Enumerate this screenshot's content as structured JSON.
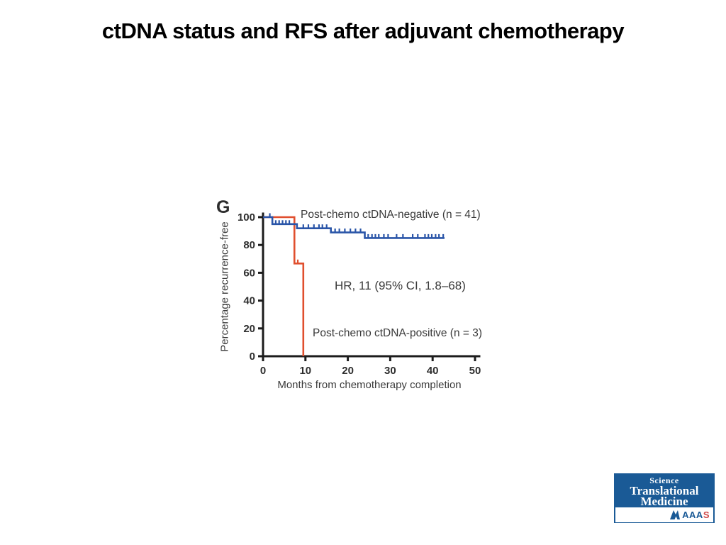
{
  "slide": {
    "title": "ctDNA status and RFS after adjuvant chemotherapy"
  },
  "chart_data": {
    "type": "line",
    "subtype": "kaplan-meier-step",
    "panel_label": "G",
    "title": "",
    "xlabel": "Months from chemotherapy completion",
    "ylabel": "Percentage recurrence-free",
    "xlim": [
      0,
      50
    ],
    "ylim": [
      0,
      100
    ],
    "x_ticks": [
      0,
      10,
      20,
      30,
      40,
      50
    ],
    "y_ticks": [
      0,
      20,
      40,
      60,
      80,
      100
    ],
    "grid": false,
    "annotation": "HR, 11 (95% CI, 1.8–68)",
    "axis_color": "#1c1c1c",
    "text_color": "#3a3a3a",
    "series": [
      {
        "name": "post-chemo-ctdna-positive",
        "label": "Post-chemo ctDNA-positive (n = 3)",
        "color": "#e04f2e",
        "steps": [
          [
            0,
            100
          ],
          [
            7.4,
            100
          ],
          [
            7.4,
            66.7
          ],
          [
            9.5,
            66.7
          ],
          [
            9.5,
            0
          ]
        ],
        "censor_marks": [
          [
            8.2,
            66.7
          ]
        ]
      },
      {
        "name": "post-chemo-ctdna-negative",
        "label": "Post-chemo ctDNA-negative (n = 41)",
        "color": "#2a55a8",
        "steps": [
          [
            0,
            100
          ],
          [
            2.2,
            100
          ],
          [
            2.2,
            95
          ],
          [
            8,
            95
          ],
          [
            8,
            92
          ],
          [
            16,
            92
          ],
          [
            16,
            89
          ],
          [
            24,
            89
          ],
          [
            24,
            85
          ],
          [
            42.8,
            85
          ]
        ],
        "censor_marks": [
          [
            1.6,
            100
          ],
          [
            3.0,
            95
          ],
          [
            3.8,
            95
          ],
          [
            4.6,
            95
          ],
          [
            5.4,
            95
          ],
          [
            6.2,
            95
          ],
          [
            9.5,
            92
          ],
          [
            10.7,
            92
          ],
          [
            12.0,
            92
          ],
          [
            13.2,
            92
          ],
          [
            14.0,
            92
          ],
          [
            15.0,
            92
          ],
          [
            17.0,
            89
          ],
          [
            18.0,
            89
          ],
          [
            19.3,
            89
          ],
          [
            20.6,
            89
          ],
          [
            21.8,
            89
          ],
          [
            23.0,
            89
          ],
          [
            24.8,
            85
          ],
          [
            25.7,
            85
          ],
          [
            26.5,
            85
          ],
          [
            27.3,
            85
          ],
          [
            28.5,
            85
          ],
          [
            29.5,
            85
          ],
          [
            31.5,
            85
          ],
          [
            33.0,
            85
          ],
          [
            35.3,
            85
          ],
          [
            36.5,
            85
          ],
          [
            38.2,
            85
          ],
          [
            39.0,
            85
          ],
          [
            39.8,
            85
          ],
          [
            40.7,
            85
          ],
          [
            41.5,
            85
          ],
          [
            42.5,
            85
          ]
        ]
      }
    ]
  },
  "logo": {
    "journal_line1": "Science",
    "journal_line2": "Translational",
    "journal_line3": "Medicine",
    "aaas_prefix": "AAA",
    "aaas_suffix": "S",
    "brand_blue": "#1a5a96",
    "accent_red": "#d04a4a"
  }
}
